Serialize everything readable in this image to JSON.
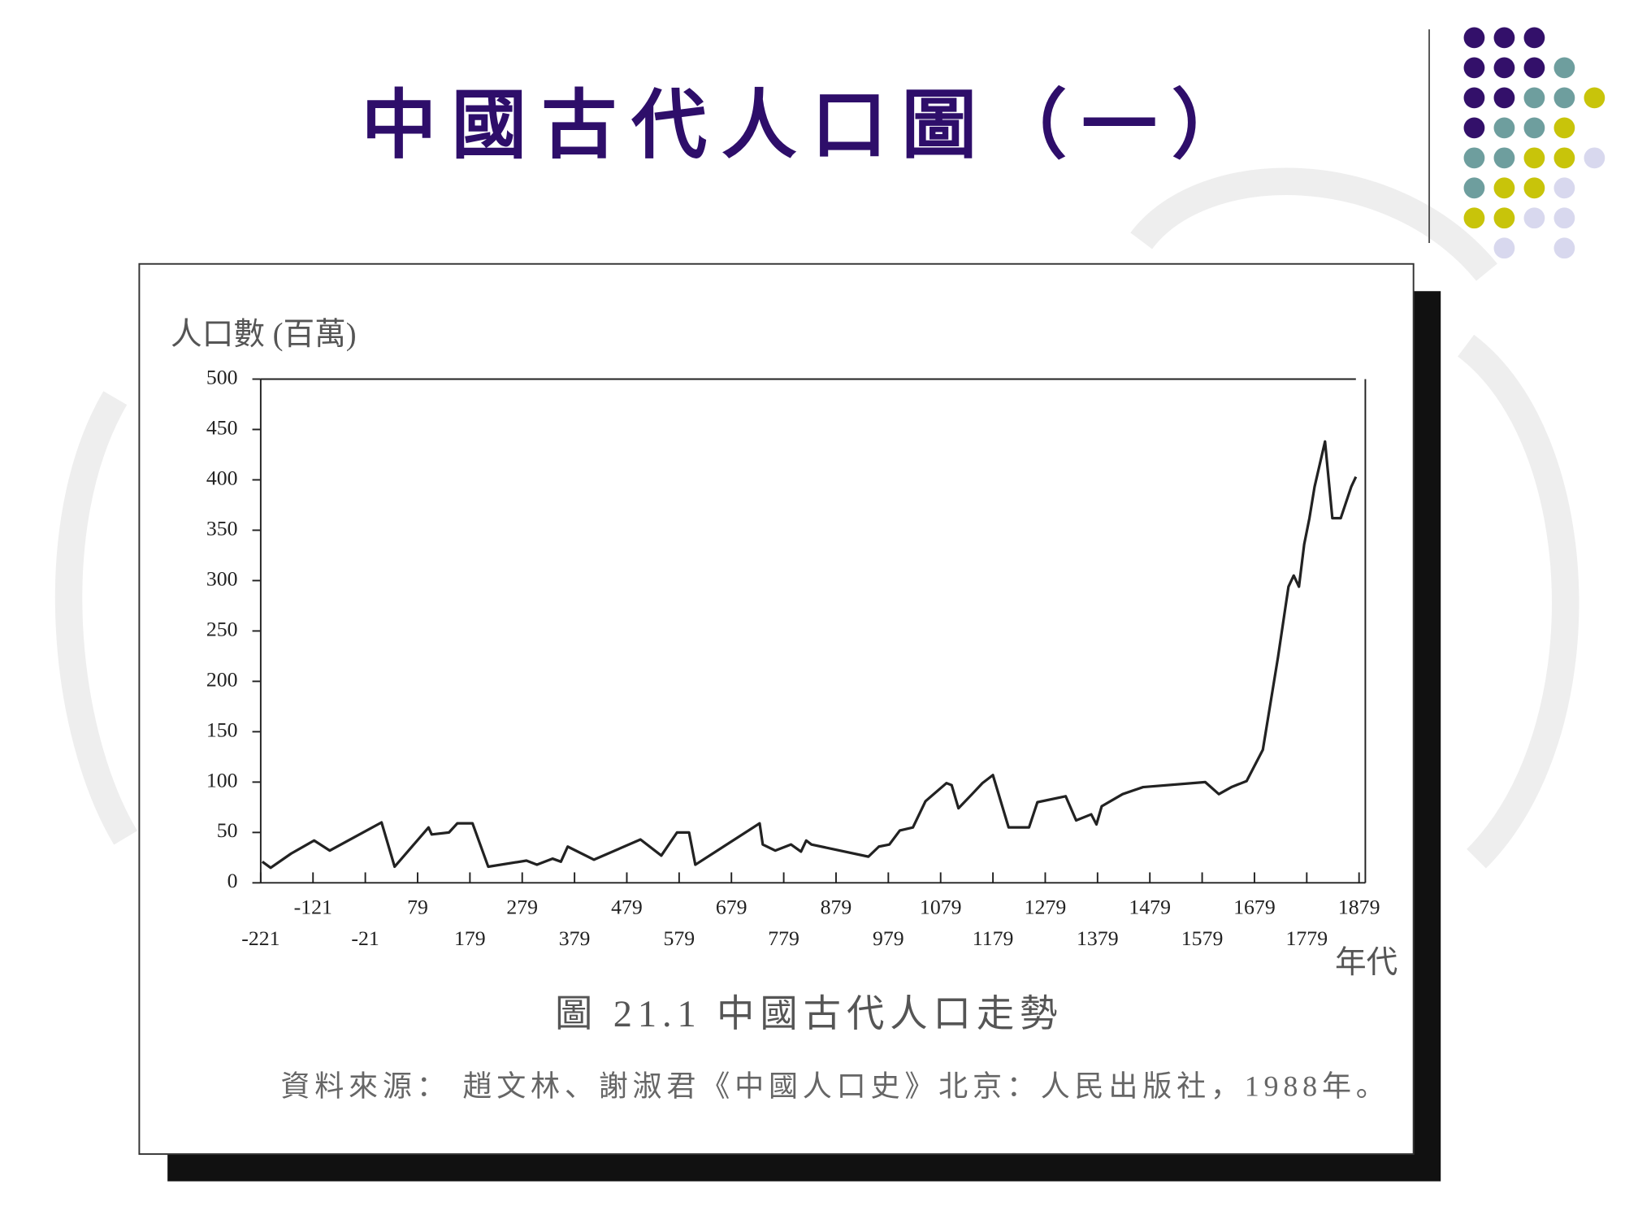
{
  "slide_title": "中國古代人口圖（一）",
  "chart_data": {
    "type": "line",
    "y_label": "人口數 (百萬)",
    "x_label": "年代",
    "caption": "圖 21.1 中國古代人口走勢",
    "source": "資料來源： 趙文林、謝淑君《中國人口史》北京：人民出版社，1988年。",
    "color": "#222222",
    "x": [
      -218,
      -202,
      -163,
      -119,
      -89,
      10,
      35,
      100,
      106,
      139,
      155,
      184,
      214,
      287,
      307,
      337,
      353,
      366,
      416,
      505,
      545,
      575,
      598,
      610,
      733,
      739,
      763,
      793,
      812,
      822,
      832,
      941,
      961,
      981,
      1001,
      1026,
      1050,
      1090,
      1100,
      1113,
      1139,
      1159,
      1179,
      1209,
      1248,
      1264,
      1318,
      1338,
      1367,
      1377,
      1387,
      1427,
      1466,
      1585,
      1611,
      1635,
      1664,
      1695,
      1724,
      1744,
      1754,
      1764,
      1774,
      1784,
      1794,
      1814,
      1828,
      1844,
      1864,
      1873
    ],
    "values": [
      21,
      15,
      29,
      42,
      32,
      60,
      16,
      55,
      48,
      50,
      59,
      59,
      16,
      22,
      18,
      24,
      21,
      36,
      23,
      43,
      27,
      50,
      50,
      18,
      59,
      38,
      32,
      38,
      31,
      42,
      38,
      26,
      36,
      38,
      52,
      55,
      81,
      99,
      97,
      74,
      88,
      99,
      107,
      55,
      55,
      80,
      86,
      62,
      68,
      58,
      76,
      88,
      95,
      100,
      88,
      95,
      101,
      132,
      224,
      294,
      305,
      294,
      336,
      362,
      393,
      438,
      362,
      362,
      393,
      403
    ],
    "xlim": [
      -221,
      1891
    ],
    "ylim": [
      0,
      500
    ],
    "xticks": [
      -221,
      -121,
      -21,
      79,
      179,
      279,
      379,
      479,
      579,
      679,
      779,
      879,
      979,
      1079,
      1179,
      1279,
      1379,
      1479,
      1579,
      1679,
      1779,
      1879
    ],
    "yticks": [
      0,
      50,
      100,
      150,
      200,
      250,
      300,
      350,
      400,
      450,
      500
    ]
  }
}
